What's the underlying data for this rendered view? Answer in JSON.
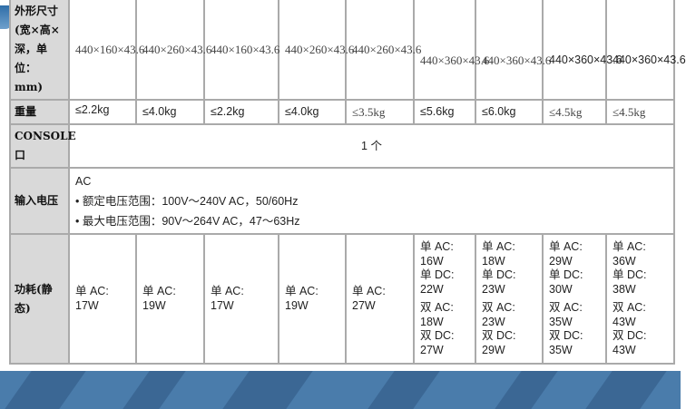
{
  "rows": {
    "size": {
      "label": "外形尺寸(宽×高×深，单位：mm)",
      "values": [
        "440×160×43.6",
        "440×260×43.6",
        "440×160×43.6",
        "440×260×43.6",
        "440×260×43.6",
        "440×360×43.6",
        "440×360×43.6",
        "440×360×43.6",
        "440×360×43.6"
      ]
    },
    "weight": {
      "label": "重量",
      "values": [
        "≤2.2kg",
        "≤4.0kg",
        "≤2.2kg",
        "≤4.0kg",
        "≤3.5kg",
        "≤5.6kg",
        "≤6.0kg",
        "≤4.5kg",
        "≤4.5kg"
      ]
    },
    "console": {
      "label": "CONSOLE口",
      "value": "1 个"
    },
    "input": {
      "label": "输入电压",
      "type": "AC",
      "rated": "• 额定电压范围：100V～240V AC，50/60Hz",
      "max": "• 最大电压范围：90V～264V AC，47～63Hz"
    },
    "power": {
      "label": "功耗(静态)",
      "values": [
        [
          "单 AC:",
          "17W"
        ],
        [
          "单 AC:",
          "19W"
        ],
        [
          "单 AC:",
          "17W"
        ],
        [
          "单 AC:",
          "19W"
        ],
        [
          "单 AC:",
          "27W"
        ],
        [
          "单 AC:",
          "16W",
          "单 DC:",
          "22W",
          "双 AC:",
          "18W",
          "双 DC:",
          "27W"
        ],
        [
          "单 AC:",
          "18W",
          "单 DC:",
          "23W",
          "双 AC:",
          "23W",
          "双 DC:",
          "29W"
        ],
        [
          "单 AC:",
          "29W",
          "单 DC:",
          "30W",
          "双 AC:",
          "35W",
          "双 DC:",
          "35W"
        ],
        [
          "单 AC:",
          "36W",
          "单 DC:",
          "38W",
          "双 AC:",
          "43W",
          "双 DC:",
          "43W"
        ]
      ]
    }
  },
  "colors": {
    "header_bg": "#d9d9d9",
    "border": "#aaaaaa",
    "banner": "#4a7cab"
  }
}
